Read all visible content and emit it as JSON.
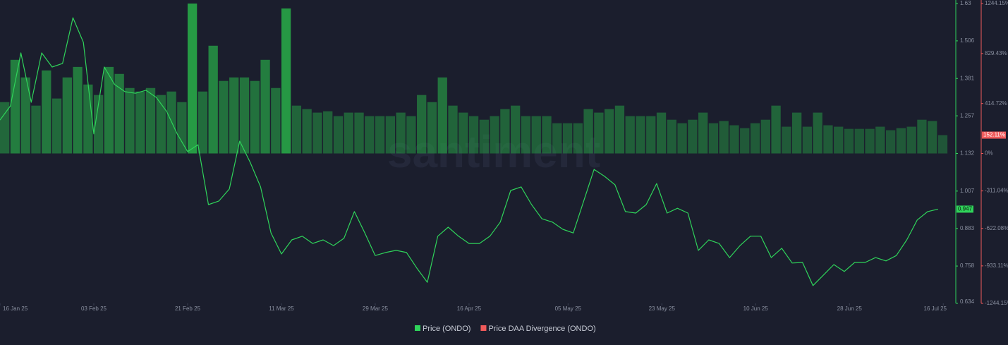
{
  "chart_data": {
    "type": "line-bar",
    "watermark": "santiment",
    "x": [
      "2025-01-16",
      "2025-01-18",
      "2025-01-20",
      "2025-01-22",
      "2025-01-24",
      "2025-01-26",
      "2025-01-28",
      "2025-01-30",
      "2025-02-01",
      "2025-02-03",
      "2025-02-05",
      "2025-02-07",
      "2025-02-09",
      "2025-02-11",
      "2025-02-13",
      "2025-02-15",
      "2025-02-17",
      "2025-02-19",
      "2025-02-21",
      "2025-02-23",
      "2025-02-25",
      "2025-02-27",
      "2025-03-01",
      "2025-03-03",
      "2025-03-05",
      "2025-03-07",
      "2025-03-09",
      "2025-03-11",
      "2025-03-13",
      "2025-03-15",
      "2025-03-17",
      "2025-03-19",
      "2025-03-21",
      "2025-03-23",
      "2025-03-25",
      "2025-03-27",
      "2025-03-29",
      "2025-03-31",
      "2025-04-02",
      "2025-04-04",
      "2025-04-06",
      "2025-04-08",
      "2025-04-10",
      "2025-04-12",
      "2025-04-14",
      "2025-04-16",
      "2025-04-18",
      "2025-04-20",
      "2025-04-22",
      "2025-04-24",
      "2025-04-26",
      "2025-04-28",
      "2025-04-30",
      "2025-05-02",
      "2025-05-04",
      "2025-05-06",
      "2025-05-08",
      "2025-05-10",
      "2025-05-12",
      "2025-05-14",
      "2025-05-16",
      "2025-05-18",
      "2025-05-20",
      "2025-05-22",
      "2025-05-24",
      "2025-05-26",
      "2025-05-28",
      "2025-05-30",
      "2025-06-01",
      "2025-06-03",
      "2025-06-05",
      "2025-06-07",
      "2025-06-09",
      "2025-06-11",
      "2025-06-13",
      "2025-06-15",
      "2025-06-17",
      "2025-06-19",
      "2025-06-21",
      "2025-06-23",
      "2025-06-25",
      "2025-06-27",
      "2025-06-29",
      "2025-07-01",
      "2025-07-03",
      "2025-07-05",
      "2025-07-07",
      "2025-07-09",
      "2025-07-11",
      "2025-07-13",
      "2025-07-15"
    ],
    "series": [
      {
        "name": "Price (ONDO)",
        "color": "#2fd35a",
        "axis": "y",
        "values": [
          1.243,
          1.29,
          1.466,
          1.302,
          1.466,
          1.419,
          1.431,
          1.583,
          1.501,
          1.197,
          1.419,
          1.361,
          1.337,
          1.332,
          1.342,
          1.318,
          1.271,
          1.197,
          1.138,
          1.161,
          0.962,
          0.974,
          1.014,
          1.173,
          1.103,
          1.021,
          0.868,
          0.798,
          0.845,
          0.857,
          0.833,
          0.845,
          0.826,
          0.85,
          0.939,
          0.868,
          0.793,
          0.803,
          0.81,
          0.803,
          0.751,
          0.704,
          0.857,
          0.887,
          0.857,
          0.833,
          0.833,
          0.857,
          0.904,
          1.009,
          1.021,
          0.962,
          0.915,
          0.904,
          0.88,
          0.868,
          0.974,
          1.079,
          1.056,
          1.028,
          0.939,
          0.934,
          0.962,
          1.032,
          0.934,
          0.95,
          0.934,
          0.81,
          0.845,
          0.833,
          0.786,
          0.826,
          0.857,
          0.857,
          0.786,
          0.817,
          0.768,
          0.77,
          0.693,
          0.728,
          0.763,
          0.74,
          0.77,
          0.77,
          0.786,
          0.775,
          0.793,
          0.845,
          0.911,
          0.939,
          0.947
        ]
      },
      {
        "name": "Price DAA Divergence (ONDO)",
        "color": "#ef5a5a",
        "positive_color": "#27a146",
        "axis": "y2",
        "values": [
          426,
          777,
          631,
          397,
          689,
          456,
          631,
          718,
          572,
          485,
          718,
          660,
          543,
          514,
          543,
          485,
          514,
          426,
          1244,
          514,
          894,
          602,
          631,
          631,
          602,
          777,
          543,
          1203,
          397,
          368,
          339,
          350,
          310,
          339,
          339,
          310,
          310,
          310,
          339,
          310,
          485,
          426,
          631,
          397,
          339,
          310,
          280,
          310,
          368,
          397,
          310,
          310,
          310,
          251,
          251,
          251,
          368,
          339,
          368,
          397,
          310,
          310,
          310,
          339,
          280,
          251,
          280,
          339,
          251,
          269,
          234,
          210,
          251,
          280,
          397,
          222,
          339,
          222,
          339,
          234,
          222,
          204,
          204,
          204,
          222,
          193,
          210,
          222,
          280,
          269,
          152.11
        ]
      }
    ],
    "current_price": 0.947,
    "current_divergence": {
      "value": 152.11,
      "label": "152.11%"
    },
    "xlim": [
      "2025-01-16",
      "2025-07-18"
    ],
    "xticks": [
      {
        "value": "2025-01-16",
        "label": "16 Jan 25"
      },
      {
        "value": "2025-02-03",
        "label": "03 Feb 25"
      },
      {
        "value": "2025-02-21",
        "label": "21 Feb 25"
      },
      {
        "value": "2025-03-11",
        "label": "11 Mar 25"
      },
      {
        "value": "2025-03-29",
        "label": "29 Mar 25"
      },
      {
        "value": "2025-04-16",
        "label": "16 Apr 25"
      },
      {
        "value": "2025-05-05",
        "label": "05 May 25"
      },
      {
        "value": "2025-05-23",
        "label": "23 May 25"
      },
      {
        "value": "2025-06-10",
        "label": "10 Jun 25"
      },
      {
        "value": "2025-06-28",
        "label": "28 Jun 25"
      },
      {
        "value": "2025-07-16",
        "label": "16 Jul 25"
      }
    ],
    "ylim": [
      0.634,
      1.63
    ],
    "yticks": [
      1.63,
      1.506,
      1.381,
      1.257,
      1.132,
      1.007,
      0.883,
      0.758,
      0.634
    ],
    "y2lim": [
      -1244.15,
      1244.15
    ],
    "y2ticks": [
      {
        "value": 1244.15,
        "label": "1244.15%"
      },
      {
        "value": 829.43,
        "label": "829.43%"
      },
      {
        "value": 414.72,
        "label": "414.72%"
      },
      {
        "value": 0,
        "label": "0%"
      },
      {
        "value": -311.04,
        "label": "-311.04%"
      },
      {
        "value": -622.08,
        "label": "-622.08%"
      },
      {
        "value": -933.11,
        "label": "-933.11%"
      },
      {
        "value": -1244.15,
        "label": "-1244.15%"
      }
    ]
  }
}
